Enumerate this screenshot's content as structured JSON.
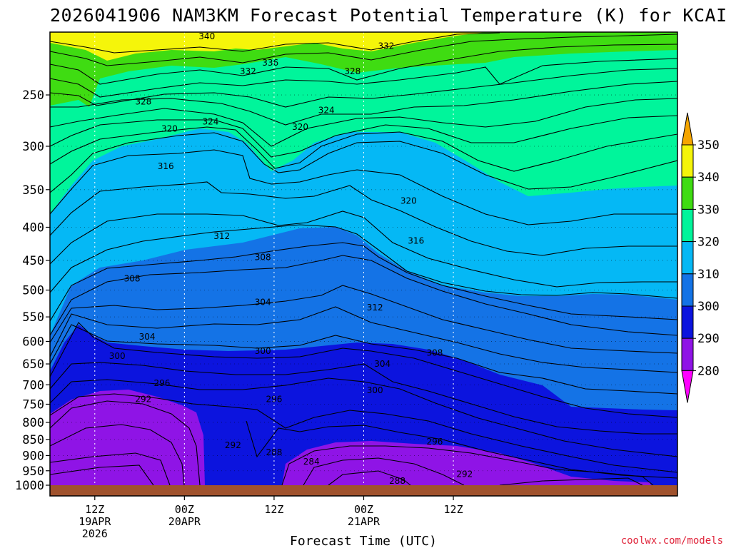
{
  "chart_data": {
    "type": "contour",
    "title": "2026041906 NAM3KM Forecast Potential Temperature (K) for KCAI",
    "xlabel": "Forecast Time (UTC)",
    "ylabel": "",
    "units": "K",
    "y_axis": {
      "scale": "log-pressure",
      "range": [
        1000,
        200
      ],
      "ticks": [
        250,
        300,
        350,
        400,
        450,
        500,
        550,
        600,
        650,
        700,
        750,
        800,
        850,
        900,
        950,
        1000
      ]
    },
    "x_axis": {
      "range_hours": [
        0,
        84
      ],
      "ticks": [
        {
          "hour": 6,
          "line1": "12Z",
          "line2": "19APR",
          "line3": "2026"
        },
        {
          "hour": 18,
          "line1": "00Z",
          "line2": "20APR",
          "line3": ""
        },
        {
          "hour": 30,
          "line1": "12Z",
          "line2": "",
          "line3": ""
        },
        {
          "hour": 42,
          "line1": "00Z",
          "line2": "21APR",
          "line3": ""
        },
        {
          "hour": 54,
          "line1": "12Z",
          "line2": "",
          "line3": ""
        }
      ]
    },
    "colorbar": {
      "levels": [
        280,
        290,
        300,
        310,
        320,
        330,
        340,
        350
      ],
      "colors": [
        {
          "range": "<280",
          "color": "#ff00ff"
        },
        {
          "range": "280-290",
          "color": "#8f14e6"
        },
        {
          "range": "290-300",
          "color": "#0c14de"
        },
        {
          "range": "300-310",
          "color": "#1473e6"
        },
        {
          "range": "310-320",
          "color": "#05b8f5"
        },
        {
          "range": "320-330",
          "color": "#00f59b"
        },
        {
          "range": "330-340",
          "color": "#3fdc12"
        },
        {
          "range": "340-350",
          "color": "#f5f50a"
        },
        {
          "range": ">350",
          "color": "#f5a500"
        }
      ]
    },
    "contour_interval_K": 2,
    "labeled_contours": [
      {
        "value": 340,
        "hour": 21,
        "pressure": 203
      },
      {
        "value": 336,
        "hour": 29.5,
        "pressure": 223
      },
      {
        "value": 332,
        "hour": 26.5,
        "pressure": 230
      },
      {
        "value": 332,
        "hour": 45,
        "pressure": 210
      },
      {
        "value": 328,
        "hour": 12.5,
        "pressure": 256
      },
      {
        "value": 328,
        "hour": 40.5,
        "pressure": 230
      },
      {
        "value": 324,
        "hour": 21.5,
        "pressure": 275
      },
      {
        "value": 324,
        "hour": 37,
        "pressure": 264
      },
      {
        "value": 320,
        "hour": 16,
        "pressure": 282
      },
      {
        "value": 320,
        "hour": 33.5,
        "pressure": 280
      },
      {
        "value": 320,
        "hour": 48,
        "pressure": 364
      },
      {
        "value": 316,
        "hour": 15.5,
        "pressure": 322
      },
      {
        "value": 316,
        "hour": 49,
        "pressure": 420
      },
      {
        "value": 312,
        "hour": 23,
        "pressure": 413
      },
      {
        "value": 312,
        "hour": 43.5,
        "pressure": 532
      },
      {
        "value": 308,
        "hour": 11,
        "pressure": 480
      },
      {
        "value": 308,
        "hour": 28.5,
        "pressure": 445
      },
      {
        "value": 308,
        "hour": 51.5,
        "pressure": 625
      },
      {
        "value": 304,
        "hour": 13,
        "pressure": 590
      },
      {
        "value": 304,
        "hour": 28.5,
        "pressure": 522
      },
      {
        "value": 304,
        "hour": 44.5,
        "pressure": 650
      },
      {
        "value": 300,
        "hour": 9,
        "pressure": 632
      },
      {
        "value": 300,
        "hour": 28.5,
        "pressure": 621
      },
      {
        "value": 300,
        "hour": 43.5,
        "pressure": 714
      },
      {
        "value": 296,
        "hour": 15,
        "pressure": 696
      },
      {
        "value": 296,
        "hour": 30,
        "pressure": 737
      },
      {
        "value": 296,
        "hour": 51.5,
        "pressure": 857
      },
      {
        "value": 292,
        "hour": 12.5,
        "pressure": 737
      },
      {
        "value": 292,
        "hour": 24.5,
        "pressure": 868
      },
      {
        "value": 292,
        "hour": 55.5,
        "pressure": 962
      },
      {
        "value": 288,
        "hour": 30,
        "pressure": 890
      },
      {
        "value": 288,
        "hour": 46.5,
        "pressure": 985
      },
      {
        "value": 284,
        "hour": 35,
        "pressure": 920
      }
    ],
    "credit": "coolwx.com/models"
  }
}
